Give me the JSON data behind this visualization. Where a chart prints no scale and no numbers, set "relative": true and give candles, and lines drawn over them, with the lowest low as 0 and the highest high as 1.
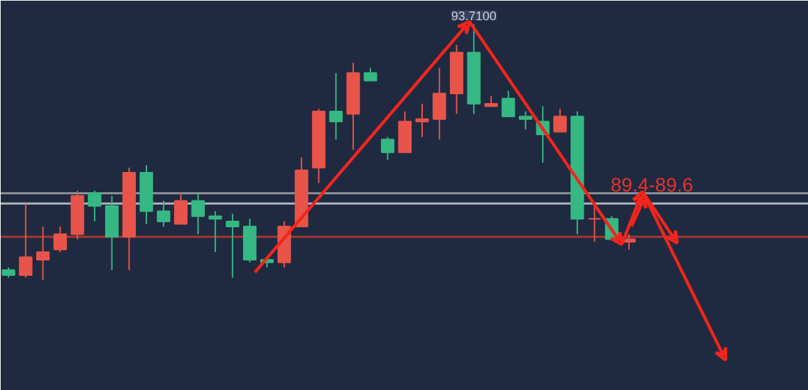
{
  "chart_data": {
    "type": "candlestick",
    "relative": true,
    "grid": false,
    "categories": [
      null,
      null,
      null,
      null,
      null,
      null,
      null,
      null,
      null,
      null,
      null,
      null,
      null,
      null,
      null,
      null,
      null,
      null,
      null,
      null,
      null,
      null,
      null,
      null,
      null,
      null,
      null,
      null,
      null,
      null,
      null,
      null,
      null,
      null,
      null,
      null,
      null
    ],
    "ohlc": [
      [
        0.04,
        0.05,
        0.01,
        0.02
      ],
      [
        0.02,
        0.3,
        0.01,
        0.09
      ],
      [
        0.08,
        0.21,
        0,
        0.11
      ],
      [
        0.12,
        0.21,
        0.11,
        0.18
      ],
      [
        0.18,
        0.35,
        0.16,
        0.33
      ],
      [
        0.34,
        0.35,
        0.23,
        0.29
      ],
      [
        0.29,
        0.33,
        0.04,
        0.17
      ],
      [
        0.17,
        0.44,
        0.04,
        0.42
      ],
      [
        0.42,
        0.45,
        0.22,
        0.27
      ],
      [
        0.27,
        0.31,
        0.21,
        0.23
      ],
      [
        0.22,
        0.34,
        0.22,
        0.31
      ],
      [
        0.31,
        0.34,
        0.18,
        0.25
      ],
      [
        0.25,
        0.27,
        0.11,
        0.24
      ],
      [
        0.23,
        0.26,
        0.01,
        0.21
      ],
      [
        0.21,
        0.24,
        0.07,
        0.08
      ],
      [
        0.08,
        0.09,
        0.05,
        0.07
      ],
      [
        0.07,
        0.23,
        0.05,
        0.21
      ],
      [
        0.21,
        0.48,
        0.21,
        0.43
      ],
      [
        0.44,
        0.67,
        0.38,
        0.66
      ],
      [
        0.66,
        0.81,
        0.55,
        0.62
      ],
      [
        0.65,
        0.85,
        0.51,
        0.81
      ],
      [
        0.81,
        0.83,
        0.78,
        0.78
      ],
      [
        0.55,
        0.56,
        0.47,
        0.5
      ],
      [
        0.5,
        0.66,
        0.5,
        0.62
      ],
      [
        0.62,
        0.69,
        0.56,
        0.63
      ],
      [
        0.63,
        0.83,
        0.55,
        0.73
      ],
      [
        0.73,
        0.92,
        0.65,
        0.89
      ],
      [
        0.89,
        1,
        0.65,
        0.69
      ],
      [
        0.68,
        0.72,
        0.68,
        0.69
      ],
      [
        0.71,
        0.74,
        0.64,
        0.64
      ],
      [
        0.64,
        0.66,
        0.59,
        0.63
      ],
      [
        0.62,
        0.68,
        0.46,
        0.57
      ],
      [
        0.58,
        0.67,
        0.58,
        0.64
      ],
      [
        0.64,
        0.66,
        0.18,
        0.24
      ],
      [
        0.24,
        0.29,
        0.15,
        0.24
      ],
      [
        0.24,
        0.25,
        0.16,
        0.16
      ],
      [
        0.15,
        0.18,
        0.12,
        0.16
      ]
    ],
    "colors": [
      "#35b883",
      "#e8544a",
      "#e8544a",
      "#e8544a",
      "#e8544a",
      "#35b883",
      "#35b883",
      "#e8544a",
      "#35b883",
      "#35b883",
      "#e8544a",
      "#35b883",
      "#35b883",
      "#35b883",
      "#35b883",
      "#35b883",
      "#e8544a",
      "#e8544a",
      "#e8544a",
      "#35b883",
      "#e8544a",
      "#35b883",
      "#35b883",
      "#e8544a",
      "#e8544a",
      "#e8544a",
      "#e8544a",
      "#35b883",
      "#e8544a",
      "#35b883",
      "#35b883",
      "#35b883",
      "#e8544a",
      "#35b883",
      "#e8544a",
      "#35b883",
      "#e8544a"
    ],
    "ref_lines": [
      {
        "axis": "y",
        "value": 0.34,
        "color": "#8a8f99"
      },
      {
        "axis": "y",
        "value": 0.3,
        "color": "#b0b4bc"
      },
      {
        "axis": "y",
        "value": 0.17,
        "color": "#a8362f"
      }
    ],
    "annotations": [
      "93.7100",
      "89.4-89.6"
    ]
  }
}
